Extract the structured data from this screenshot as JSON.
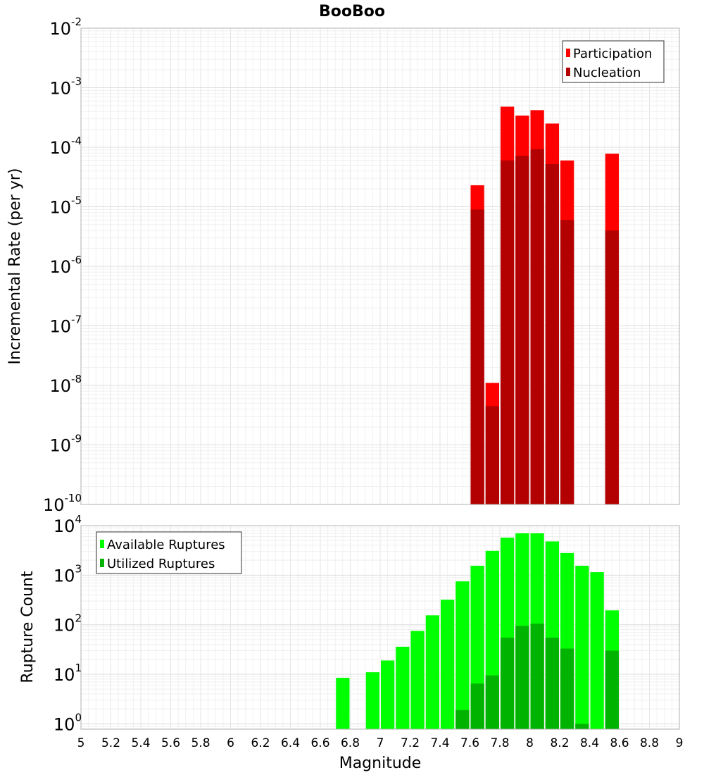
{
  "chart_data": [
    {
      "type": "bar",
      "title": "BooBoo",
      "xlabel": "",
      "ylabel": "Incremental Rate (per yr)",
      "yscale": "log",
      "ylim": [
        1e-10,
        0.01
      ],
      "xlim": [
        5,
        9
      ],
      "grid": true,
      "legend_placement": "top-right",
      "series": [
        {
          "name": "Participation",
          "color": "#ff0000",
          "x": [
            7.65,
            7.75,
            7.85,
            7.95,
            8.05,
            8.15,
            8.25,
            8.55
          ],
          "values": [
            2.3e-05,
            1.1e-08,
            0.00048,
            0.00034,
            0.00042,
            0.00025,
            6e-05,
            7.8e-05
          ]
        },
        {
          "name": "Nucleation",
          "color": "#b30000",
          "x": [
            7.65,
            7.75,
            7.85,
            7.95,
            8.05,
            8.15,
            8.25,
            8.55
          ],
          "values": [
            9e-06,
            4.5e-09,
            6e-05,
            7.2e-05,
            9.3e-05,
            5.2e-05,
            6e-06,
            4e-06
          ]
        }
      ]
    },
    {
      "type": "bar",
      "title": "",
      "xlabel": "Magnitude",
      "ylabel": "Rupture Count",
      "yscale": "log",
      "ylim": [
        0.78,
        10000
      ],
      "xlim": [
        5,
        9
      ],
      "xticks": [
        "5",
        "5.2",
        "5.4",
        "5.6",
        "5.8",
        "6",
        "6.2",
        "6.4",
        "6.6",
        "6.8",
        "7",
        "7.2",
        "7.4",
        "7.6",
        "7.8",
        "8",
        "8.2",
        "8.4",
        "8.6",
        "8.8",
        "9"
      ],
      "grid": true,
      "legend_placement": "top-left",
      "series": [
        {
          "name": "Available Ruptures",
          "color": "#00ff00",
          "x": [
            6.75,
            6.95,
            7.05,
            7.15,
            7.25,
            7.35,
            7.45,
            7.55,
            7.65,
            7.75,
            7.85,
            7.95,
            8.05,
            8.15,
            8.25,
            8.35,
            8.45,
            8.55
          ],
          "values": [
            8.5,
            11,
            19,
            36,
            75,
            155,
            320,
            750,
            1550,
            3100,
            5700,
            7000,
            7000,
            4800,
            2800,
            1550,
            1150,
            195
          ]
        },
        {
          "name": "Utilized Ruptures",
          "color": "#00b300",
          "x": [
            7.55,
            7.65,
            7.75,
            7.85,
            7.95,
            8.05,
            8.15,
            8.25,
            8.35,
            8.55
          ],
          "values": [
            1.9,
            6.5,
            9.5,
            55,
            95,
            105,
            55,
            33,
            1.0,
            30
          ]
        }
      ]
    }
  ]
}
